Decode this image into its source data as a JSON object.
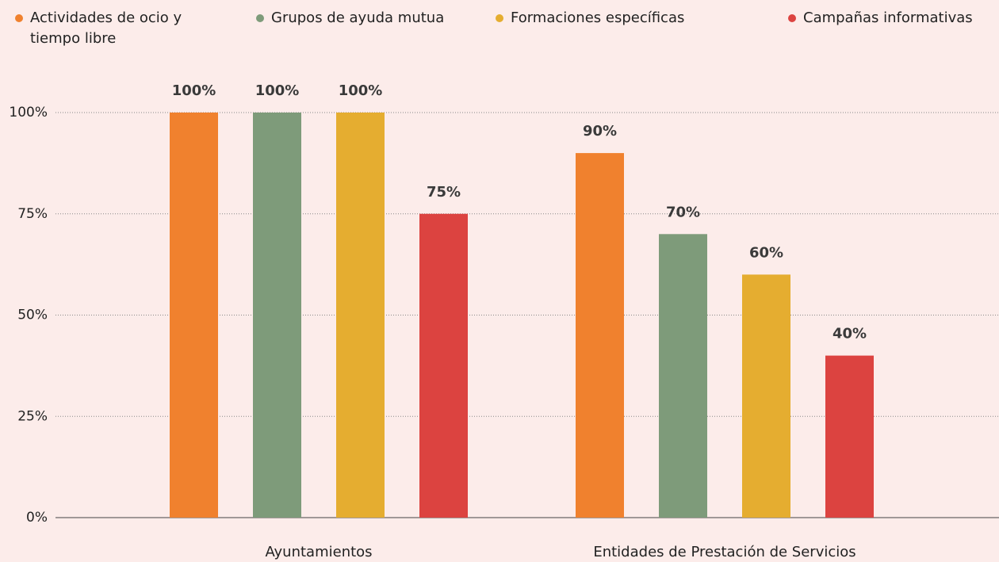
{
  "chart_data": {
    "type": "bar",
    "categories": [
      "Ayuntamientos",
      "Entidades de Prestación de Servicios"
    ],
    "series": [
      {
        "name": "Actividades de ocio y tiempo libre",
        "color": "#f0812e",
        "values": [
          100,
          90
        ],
        "value_labels": [
          "100%",
          "90%"
        ]
      },
      {
        "name": "Grupos de ayuda mutua",
        "color": "#7e9b7a",
        "values": [
          100,
          70
        ],
        "value_labels": [
          "100%",
          "70%"
        ]
      },
      {
        "name": "Formaciones específicas",
        "color": "#e5ad30",
        "values": [
          100,
          60
        ],
        "value_labels": [
          "100%",
          "60%"
        ]
      },
      {
        "name": "Campañas informativas",
        "color": "#dc4340",
        "values": [
          75,
          40
        ],
        "value_labels": [
          "75%",
          "40%"
        ]
      }
    ],
    "ylim": [
      0,
      100
    ],
    "yticks": [
      {
        "value": 0,
        "label": "0%"
      },
      {
        "value": 25,
        "label": "25%"
      },
      {
        "value": 50,
        "label": "50%"
      },
      {
        "value": 75,
        "label": "75%"
      },
      {
        "value": 100,
        "label": "100%"
      }
    ],
    "grid": true,
    "legend": "top"
  }
}
